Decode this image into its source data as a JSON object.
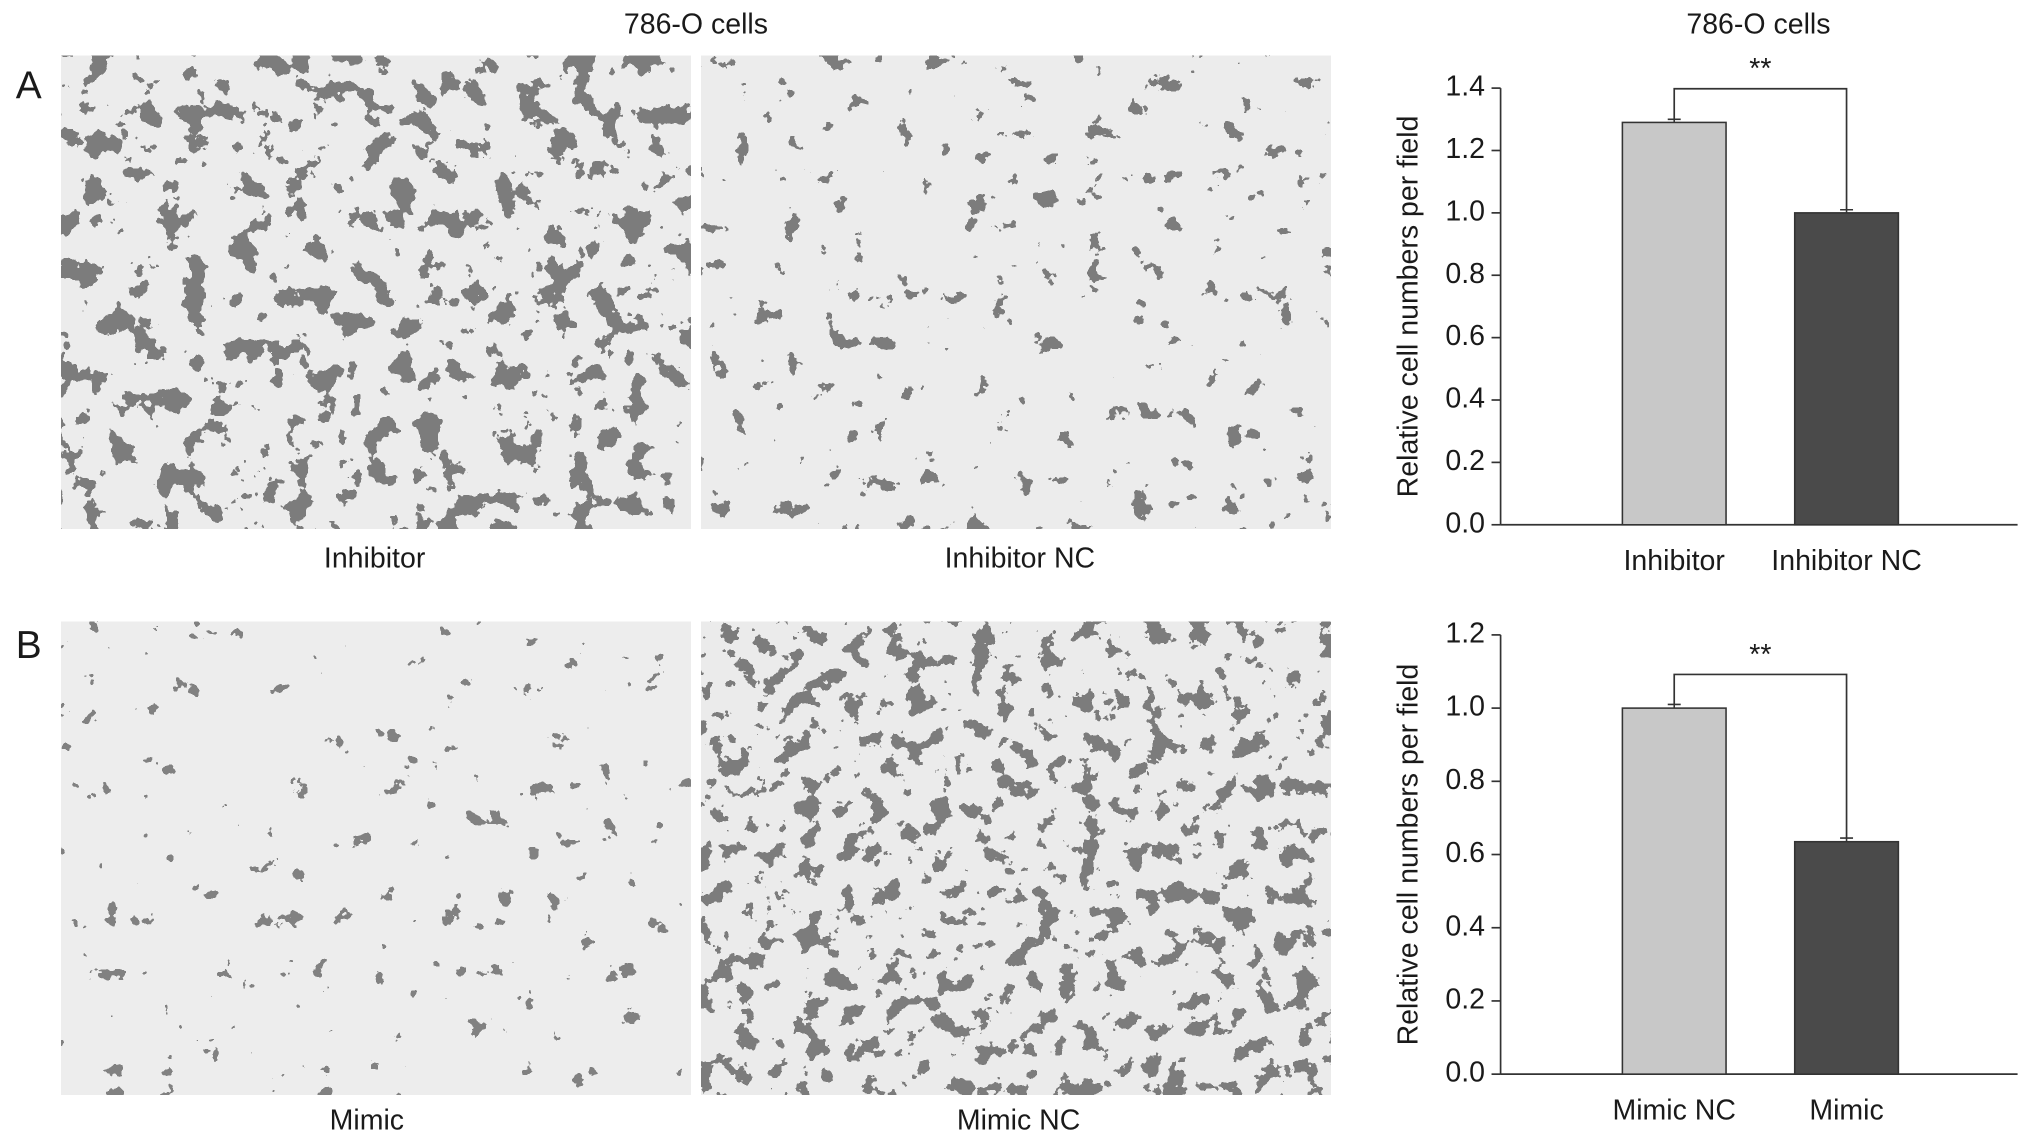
{
  "panels": [
    {
      "label": "A",
      "title": "786-O cells",
      "images": [
        "Inhibitor",
        "Inhibitor NC"
      ]
    },
    {
      "label": "B",
      "images": [
        "Mimic",
        "Mimic NC"
      ]
    }
  ],
  "chart_data": [
    {
      "type": "bar",
      "title": "786-O cells",
      "y_label": "Relative cell numbers per field",
      "categories": [
        "Inhibitor",
        "Inhibitor NC"
      ],
      "values": [
        1.29,
        1.0
      ],
      "errors": [
        0.01,
        0.01
      ],
      "colors": [
        "#c8c8c8",
        "#4a4a4a"
      ],
      "ylim": [
        0,
        1.4
      ],
      "yticks": [
        {
          "value": 0,
          "label": "0.0"
        },
        0.2,
        0.4,
        0.6,
        0.8,
        {
          "value": 1,
          "label": "1.0"
        },
        1.2,
        1.4
      ],
      "annotation": "**"
    },
    {
      "type": "bar",
      "y_label": "Relative cell numbers per field",
      "categories": [
        "Mimic NC",
        "Mimic"
      ],
      "values": [
        1.0,
        0.635
      ],
      "errors": [
        0.01,
        0.01
      ],
      "colors": [
        "#c8c8c8",
        "#4a4a4a"
      ],
      "ylim": [
        0,
        1.2
      ],
      "yticks": [
        {
          "value": 0,
          "label": "0.0"
        },
        0.2,
        0.4,
        0.6,
        0.8,
        {
          "value": 1,
          "label": "1.0"
        },
        1.2
      ],
      "annotation": "**"
    }
  ]
}
